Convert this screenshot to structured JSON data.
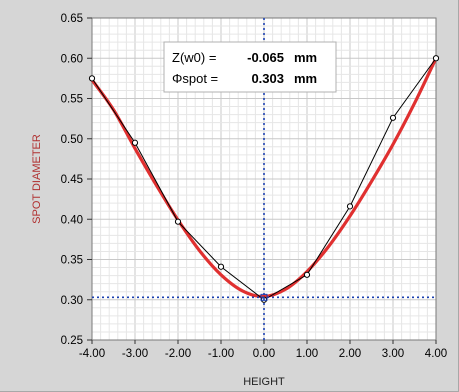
{
  "chart_data": {
    "type": "line",
    "xlabel": "HEIGHT",
    "ylabel": "SPOT DIAMETER",
    "xlim": [
      -4.0,
      4.0
    ],
    "ylim": [
      0.25,
      0.65
    ],
    "x_ticks": [
      "-4.00",
      "-3.00",
      "-2.00",
      "-1.00",
      "0.00",
      "1.00",
      "2.00",
      "3.00",
      "4.00"
    ],
    "y_ticks": [
      "0.25",
      "0.30",
      "0.35",
      "0.40",
      "0.45",
      "0.50",
      "0.55",
      "0.60",
      "0.65"
    ],
    "grid": true,
    "series": [
      {
        "kind": "measured",
        "color": "#000000",
        "marker": "circle",
        "x": [
          -4.0,
          -3.0,
          -2.0,
          -1.0,
          0.0,
          1.0,
          2.0,
          3.0,
          4.0
        ],
        "y": [
          0.575,
          0.495,
          0.397,
          0.341,
          0.3,
          0.331,
          0.416,
          0.526,
          0.6
        ]
      },
      {
        "kind": "fit",
        "color": "#e03030",
        "x": [
          -4.0,
          -3.5,
          -3.0,
          -2.5,
          -2.0,
          -1.5,
          -1.0,
          -0.5,
          0.0,
          0.5,
          1.0,
          1.5,
          2.0,
          2.5,
          3.0,
          3.5,
          4.0
        ],
        "y": [
          0.573,
          0.536,
          0.488,
          0.442,
          0.399,
          0.361,
          0.331,
          0.311,
          0.304,
          0.313,
          0.335,
          0.366,
          0.404,
          0.447,
          0.493,
          0.544,
          0.6
        ]
      }
    ],
    "crosshair": {
      "x": 0.0,
      "y": 0.303,
      "color": "#1a3fb0"
    },
    "readout": {
      "z_label": "Z(w0) =",
      "z_value": "-0.065",
      "phi_label": "Φspot =",
      "phi_value": "0.303",
      "unit": "mm"
    }
  }
}
